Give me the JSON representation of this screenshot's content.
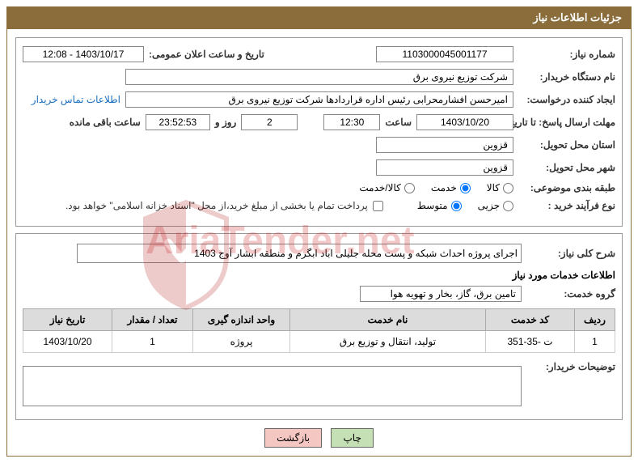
{
  "panel": {
    "title": "جزئیات اطلاعات نیاز"
  },
  "fields": {
    "reqnum_label": "شماره نیاز:",
    "reqnum_value": "1103000045001177",
    "announce_label": "تاریخ و ساعت اعلان عمومی:",
    "announce_value": "1403/10/17 - 12:08",
    "buyer_label": "نام دستگاه خریدار:",
    "buyer_value": "شرکت توزیع نیروی برق",
    "requester_label": "ایجاد کننده درخواست:",
    "requester_value": "امیرحسن افشارمحرابی رئیس اداره قراردادها شرکت توزیع نیروی برق",
    "contact_link": "اطلاعات تماس خریدار",
    "deadline_label": "مهلت ارسال پاسخ: تا تاریخ:",
    "deadline_date": "1403/10/20",
    "time_label": "ساعت",
    "deadline_time": "12:30",
    "days_value": "2",
    "days_and": "روز و",
    "countdown": "23:52:53",
    "remaining": "ساعت باقی مانده",
    "province_label": "استان محل تحویل:",
    "province_value": "قزوین",
    "city_label": "شهر محل تحویل:",
    "city_value": "قزوین",
    "category_label": "طبقه بندی موضوعی:",
    "cat_kala": "کالا",
    "cat_khedmat": "خدمت",
    "cat_both": "کالا/خدمت",
    "process_label": "نوع فرآیند خرید :",
    "proc_partial": "جزیی",
    "proc_medium": "متوسط",
    "payment_note": "پرداخت تمام یا بخشی از مبلغ خرید،از محل \"اسناد خزانه اسلامی\" خواهد بود.",
    "desc_label": "شرح کلی نیاز:",
    "desc_value": "اجرای پروژه احداث شبکه و پست محله جلیلی اباد ابگرم و منطقه ابشار آوج 1403",
    "services_header": "اطلاعات خدمات مورد نیاز",
    "group_label": "گروه خدمت:",
    "group_value": "تامین برق، گاز، بخار و تهویه هوا",
    "buyer_notes_label": "توضیحات خریدار:"
  },
  "table": {
    "headers": {
      "row": "ردیف",
      "code": "کد خدمت",
      "name": "نام خدمت",
      "unit": "واحد اندازه گیری",
      "qty": "تعداد / مقدار",
      "date": "تاریخ نیاز"
    },
    "rows": [
      {
        "row": "1",
        "code": "ت -35-351",
        "name": "تولید، انتقال و توزیع برق",
        "unit": "پروژه",
        "qty": "1",
        "date": "1403/10/20"
      }
    ]
  },
  "buttons": {
    "print": "چاپ",
    "back": "بازگشت"
  },
  "watermark": "AriaTender.net",
  "colors": {
    "header_bg": "#8a6d3b",
    "link": "#1a6ebd"
  }
}
